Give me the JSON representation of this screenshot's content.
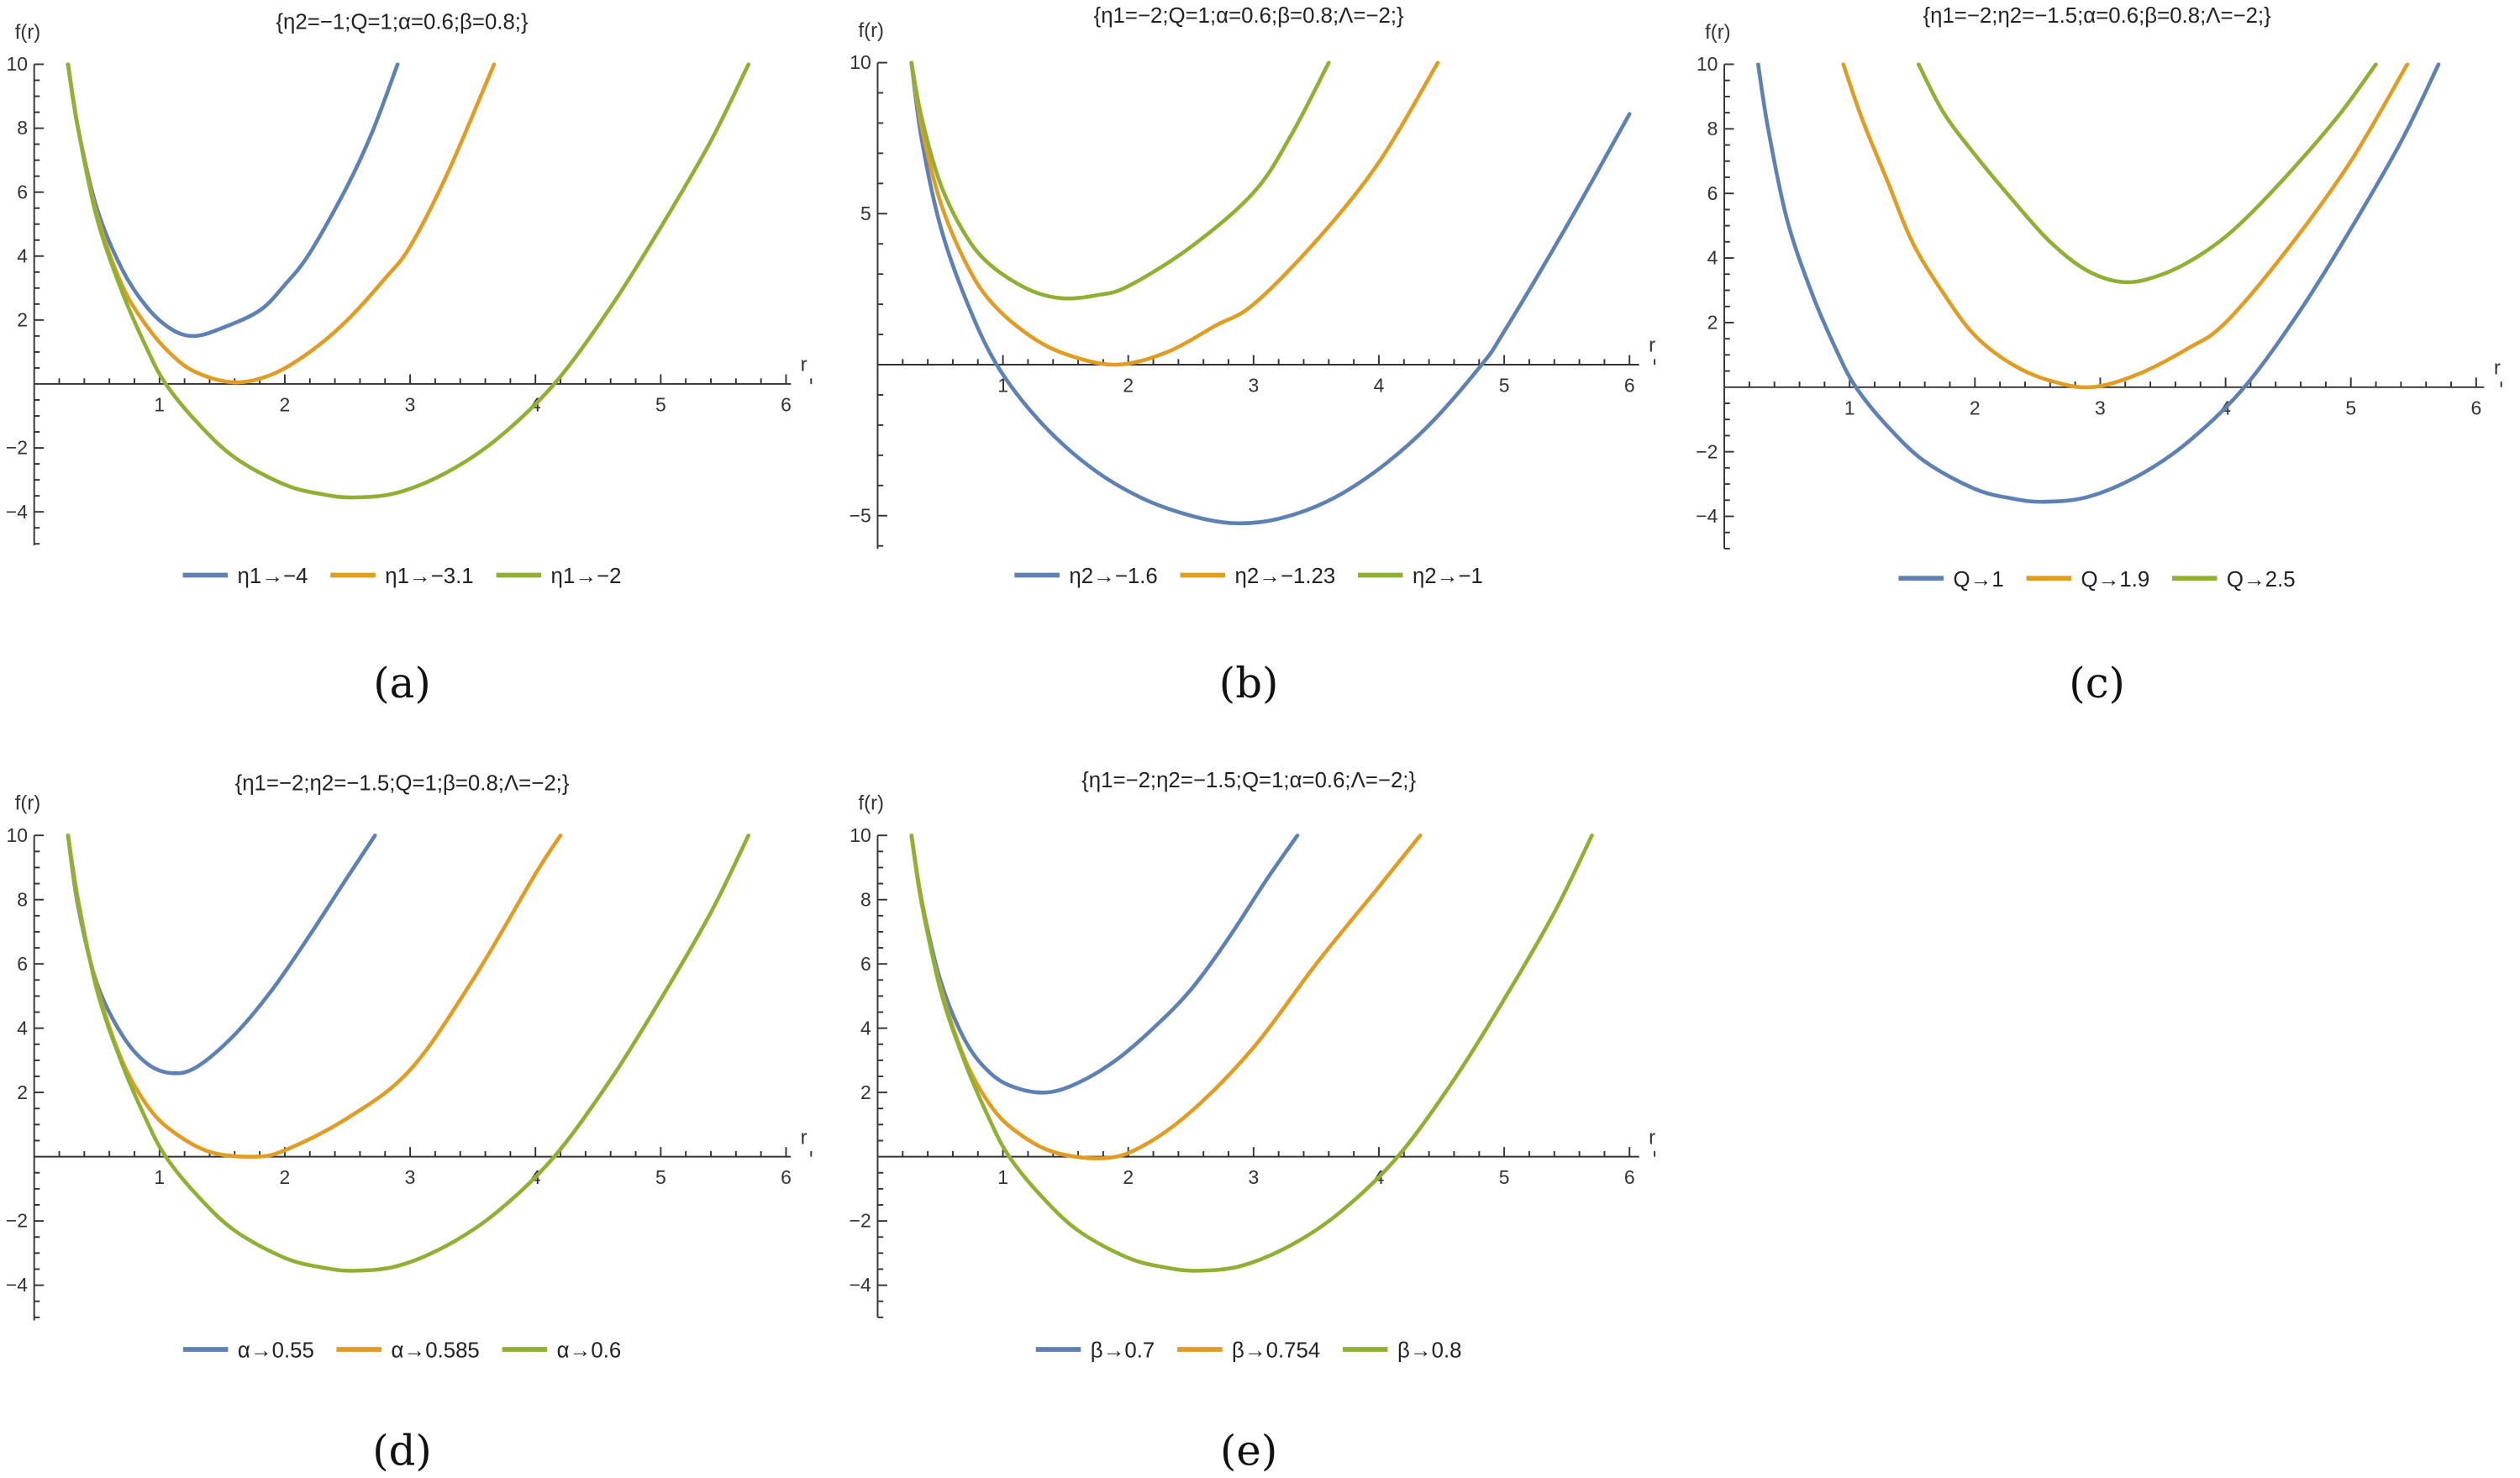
{
  "colors": [
    "#5E81B5",
    "#E19C24",
    "#8FB032"
  ],
  "chart_data": [
    {
      "type": "line",
      "panel": "a",
      "caption": "(a)",
      "title": "{η2=−1;Q=1;α=0.6;β=0.8;}",
      "xlabel": "r",
      "ylabel": "f(r)",
      "xlim": [
        0,
        6.2
      ],
      "ylim": [
        -5,
        10
      ],
      "xticks": [
        1,
        2,
        3,
        4,
        5,
        6
      ],
      "yticks": [
        -4,
        -2,
        2,
        4,
        6,
        8,
        10
      ],
      "series": [
        {
          "name": "η1→−4",
          "points": [
            [
              0.27,
              10
            ],
            [
              0.35,
              8.0
            ],
            [
              0.5,
              5.5
            ],
            [
              0.7,
              3.6
            ],
            [
              0.9,
              2.4
            ],
            [
              1.1,
              1.7
            ],
            [
              1.28,
              1.5
            ],
            [
              1.5,
              1.75
            ],
            [
              1.8,
              2.3
            ],
            [
              2.0,
              3.1
            ],
            [
              2.2,
              4.1
            ],
            [
              2.5,
              6.2
            ],
            [
              2.7,
              7.9
            ],
            [
              2.9,
              10
            ]
          ]
        },
        {
          "name": "η1→−3.1",
          "points": [
            [
              0.27,
              10
            ],
            [
              0.35,
              8.0
            ],
            [
              0.5,
              5.3
            ],
            [
              0.7,
              3.1
            ],
            [
              0.9,
              1.8
            ],
            [
              1.1,
              0.9
            ],
            [
              1.3,
              0.35
            ],
            [
              1.6,
              0.05
            ],
            [
              1.9,
              0.3
            ],
            [
              2.2,
              1.0
            ],
            [
              2.5,
              2.0
            ],
            [
              2.8,
              3.3
            ],
            [
              3.0,
              4.3
            ],
            [
              3.3,
              6.6
            ],
            [
              3.67,
              10
            ]
          ]
        },
        {
          "name": "η1→−2",
          "points": [
            [
              0.27,
              10
            ],
            [
              0.35,
              8.0
            ],
            [
              0.5,
              5.2
            ],
            [
              0.7,
              2.9
            ],
            [
              0.9,
              1.1
            ],
            [
              1.05,
              0
            ],
            [
              1.3,
              -1.2
            ],
            [
              1.6,
              -2.3
            ],
            [
              2.0,
              -3.15
            ],
            [
              2.3,
              -3.45
            ],
            [
              2.55,
              -3.55
            ],
            [
              2.9,
              -3.4
            ],
            [
              3.3,
              -2.75
            ],
            [
              3.7,
              -1.7
            ],
            [
              4.15,
              0
            ],
            [
              4.6,
              2.4
            ],
            [
              5.0,
              4.9
            ],
            [
              5.4,
              7.6
            ],
            [
              5.7,
              10
            ]
          ]
        }
      ]
    },
    {
      "type": "line",
      "panel": "b",
      "caption": "(b)",
      "title": "{η1=−2;Q=1;α=0.6;β=0.8;Λ=−2;}",
      "xlabel": "r",
      "ylabel": "f(r)",
      "xlim": [
        0,
        6.2
      ],
      "ylim": [
        -6,
        10
      ],
      "xticks": [
        1,
        2,
        3,
        4,
        5,
        6
      ],
      "yticks": [
        -5,
        5,
        10
      ],
      "series": [
        {
          "name": "η2→−1.6",
          "points": [
            [
              0.27,
              10
            ],
            [
              0.35,
              7.5
            ],
            [
              0.5,
              4.6
            ],
            [
              0.7,
              2.2
            ],
            [
              0.95,
              0
            ],
            [
              1.3,
              -1.9
            ],
            [
              1.7,
              -3.4
            ],
            [
              2.1,
              -4.4
            ],
            [
              2.5,
              -5.0
            ],
            [
              2.85,
              -5.25
            ],
            [
              3.2,
              -5.1
            ],
            [
              3.6,
              -4.5
            ],
            [
              4.0,
              -3.45
            ],
            [
              4.4,
              -2.0
            ],
            [
              4.82,
              0
            ],
            [
              5.0,
              1.1
            ],
            [
              5.5,
              4.6
            ],
            [
              6.0,
              8.3
            ]
          ]
        },
        {
          "name": "η2→−1.23",
          "points": [
            [
              0.27,
              10
            ],
            [
              0.35,
              7.9
            ],
            [
              0.5,
              5.4
            ],
            [
              0.7,
              3.4
            ],
            [
              0.9,
              2.1
            ],
            [
              1.2,
              1.0
            ],
            [
              1.5,
              0.35
            ],
            [
              1.9,
              0
            ],
            [
              2.3,
              0.4
            ],
            [
              2.7,
              1.3
            ],
            [
              3.0,
              2.0
            ],
            [
              3.5,
              4.1
            ],
            [
              4.0,
              6.7
            ],
            [
              4.47,
              10
            ]
          ]
        },
        {
          "name": "η2→−1",
          "points": [
            [
              0.27,
              10
            ],
            [
              0.35,
              8.2
            ],
            [
              0.5,
              6.0
            ],
            [
              0.7,
              4.3
            ],
            [
              0.9,
              3.3
            ],
            [
              1.2,
              2.5
            ],
            [
              1.47,
              2.2
            ],
            [
              1.75,
              2.3
            ],
            [
              2.0,
              2.6
            ],
            [
              2.5,
              3.9
            ],
            [
              3.0,
              5.7
            ],
            [
              3.3,
              7.6
            ],
            [
              3.6,
              10
            ]
          ]
        }
      ]
    },
    {
      "type": "line",
      "panel": "c",
      "caption": "(c)",
      "title": "{η1=−2;η2=−1.5;α=0.6;β=0.8;Λ=−2;}",
      "xlabel": "r",
      "ylabel": "f(r)",
      "xlim": [
        0,
        6.2
      ],
      "ylim": [
        -5,
        10
      ],
      "xticks": [
        1,
        2,
        3,
        4,
        5,
        6
      ],
      "yticks": [
        -4,
        -2,
        2,
        4,
        6,
        8,
        10
      ],
      "series": [
        {
          "name": "Q→1",
          "points": [
            [
              0.27,
              10
            ],
            [
              0.35,
              8.0
            ],
            [
              0.5,
              5.2
            ],
            [
              0.7,
              2.9
            ],
            [
              0.9,
              1.1
            ],
            [
              1.05,
              0
            ],
            [
              1.3,
              -1.2
            ],
            [
              1.6,
              -2.3
            ],
            [
              2.0,
              -3.15
            ],
            [
              2.3,
              -3.45
            ],
            [
              2.55,
              -3.55
            ],
            [
              2.9,
              -3.4
            ],
            [
              3.3,
              -2.75
            ],
            [
              3.7,
              -1.7
            ],
            [
              4.15,
              0
            ],
            [
              4.6,
              2.4
            ],
            [
              5.0,
              4.9
            ],
            [
              5.4,
              7.6
            ],
            [
              5.7,
              10
            ]
          ]
        },
        {
          "name": "Q→1.9",
          "points": [
            [
              0.95,
              10
            ],
            [
              1.1,
              8.3
            ],
            [
              1.3,
              6.4
            ],
            [
              1.5,
              4.5
            ],
            [
              1.75,
              2.9
            ],
            [
              2.0,
              1.6
            ],
            [
              2.3,
              0.7
            ],
            [
              2.6,
              0.2
            ],
            [
              2.93,
              0
            ],
            [
              3.3,
              0.4
            ],
            [
              3.7,
              1.2
            ],
            [
              4.0,
              2.0
            ],
            [
              4.5,
              4.3
            ],
            [
              5.0,
              7.0
            ],
            [
              5.45,
              10
            ]
          ]
        },
        {
          "name": "Q→2.5",
          "points": [
            [
              1.55,
              10
            ],
            [
              1.75,
              8.5
            ],
            [
              2.0,
              7.2
            ],
            [
              2.3,
              5.8
            ],
            [
              2.6,
              4.5
            ],
            [
              2.9,
              3.6
            ],
            [
              3.2,
              3.25
            ],
            [
              3.5,
              3.5
            ],
            [
              3.8,
              4.1
            ],
            [
              4.1,
              5.0
            ],
            [
              4.5,
              6.6
            ],
            [
              4.9,
              8.4
            ],
            [
              5.2,
              10
            ]
          ]
        }
      ]
    },
    {
      "type": "line",
      "panel": "d",
      "caption": "(d)",
      "title": "{η1=−2;η2=−1.5;Q=1;β=0.8;Λ=−2;}",
      "xlabel": "r",
      "ylabel": "f(r)",
      "xlim": [
        0,
        6.2
      ],
      "ylim": [
        -5,
        10
      ],
      "xticks": [
        1,
        2,
        3,
        4,
        5,
        6
      ],
      "yticks": [
        -4,
        -2,
        2,
        4,
        6,
        8,
        10
      ],
      "series": [
        {
          "name": "α→0.55",
          "points": [
            [
              0.27,
              10
            ],
            [
              0.35,
              7.8
            ],
            [
              0.5,
              5.4
            ],
            [
              0.7,
              3.8
            ],
            [
              0.9,
              2.9
            ],
            [
              1.1,
              2.6
            ],
            [
              1.3,
              2.8
            ],
            [
              1.6,
              3.8
            ],
            [
              1.9,
              5.2
            ],
            [
              2.2,
              6.9
            ],
            [
              2.5,
              8.7
            ],
            [
              2.72,
              10
            ]
          ]
        },
        {
          "name": "α→0.585",
          "points": [
            [
              0.27,
              10
            ],
            [
              0.35,
              7.9
            ],
            [
              0.5,
              5.3
            ],
            [
              0.7,
              3.0
            ],
            [
              0.9,
              1.6
            ],
            [
              1.1,
              0.8
            ],
            [
              1.4,
              0.15
            ],
            [
              1.75,
              0
            ],
            [
              2.0,
              0.2
            ],
            [
              2.5,
              1.2
            ],
            [
              3.0,
              2.7
            ],
            [
              3.5,
              5.5
            ],
            [
              4.0,
              8.8
            ],
            [
              4.2,
              10
            ]
          ]
        },
        {
          "name": "α→0.6",
          "points": [
            [
              0.27,
              10
            ],
            [
              0.35,
              8.0
            ],
            [
              0.5,
              5.2
            ],
            [
              0.7,
              2.9
            ],
            [
              0.9,
              1.1
            ],
            [
              1.05,
              0
            ],
            [
              1.3,
              -1.2
            ],
            [
              1.6,
              -2.3
            ],
            [
              2.0,
              -3.15
            ],
            [
              2.3,
              -3.45
            ],
            [
              2.55,
              -3.55
            ],
            [
              2.9,
              -3.4
            ],
            [
              3.3,
              -2.75
            ],
            [
              3.7,
              -1.7
            ],
            [
              4.15,
              0
            ],
            [
              4.6,
              2.4
            ],
            [
              5.0,
              4.9
            ],
            [
              5.4,
              7.6
            ],
            [
              5.7,
              10
            ]
          ]
        }
      ]
    },
    {
      "type": "line",
      "panel": "e",
      "caption": "(e)",
      "title": "{η1=−2;η2=−1.5;Q=1;α=0.6;Λ=−2;}",
      "xlabel": "r",
      "ylabel": "f(r)",
      "xlim": [
        0,
        6.2
      ],
      "ylim": [
        -5,
        10
      ],
      "xticks": [
        1,
        2,
        3,
        4,
        5,
        6
      ],
      "yticks": [
        -4,
        -2,
        2,
        4,
        6,
        8,
        10
      ],
      "series": [
        {
          "name": "β→0.7",
          "points": [
            [
              0.27,
              10
            ],
            [
              0.35,
              8.0
            ],
            [
              0.5,
              5.5
            ],
            [
              0.7,
              3.6
            ],
            [
              0.9,
              2.6
            ],
            [
              1.1,
              2.15
            ],
            [
              1.35,
              2.0
            ],
            [
              1.6,
              2.3
            ],
            [
              1.9,
              3.0
            ],
            [
              2.2,
              4.0
            ],
            [
              2.5,
              5.2
            ],
            [
              2.8,
              6.8
            ],
            [
              3.1,
              8.6
            ],
            [
              3.35,
              10
            ]
          ]
        },
        {
          "name": "β→0.754",
          "points": [
            [
              0.27,
              10
            ],
            [
              0.35,
              7.9
            ],
            [
              0.5,
              5.3
            ],
            [
              0.7,
              3.0
            ],
            [
              0.9,
              1.6
            ],
            [
              1.1,
              0.8
            ],
            [
              1.4,
              0.15
            ],
            [
              1.8,
              -0.05
            ],
            [
              2.1,
              0.3
            ],
            [
              2.5,
              1.4
            ],
            [
              3.0,
              3.4
            ],
            [
              3.5,
              6.0
            ],
            [
              4.0,
              8.4
            ],
            [
              4.33,
              10
            ]
          ]
        },
        {
          "name": "β→0.8",
          "points": [
            [
              0.27,
              10
            ],
            [
              0.35,
              8.0
            ],
            [
              0.5,
              5.2
            ],
            [
              0.7,
              2.9
            ],
            [
              0.9,
              1.1
            ],
            [
              1.05,
              0
            ],
            [
              1.3,
              -1.2
            ],
            [
              1.6,
              -2.3
            ],
            [
              2.0,
              -3.15
            ],
            [
              2.3,
              -3.45
            ],
            [
              2.55,
              -3.55
            ],
            [
              2.9,
              -3.4
            ],
            [
              3.3,
              -2.75
            ],
            [
              3.7,
              -1.7
            ],
            [
              4.15,
              0
            ],
            [
              4.6,
              2.4
            ],
            [
              5.0,
              4.9
            ],
            [
              5.4,
              7.6
            ],
            [
              5.7,
              10
            ]
          ]
        }
      ]
    }
  ]
}
